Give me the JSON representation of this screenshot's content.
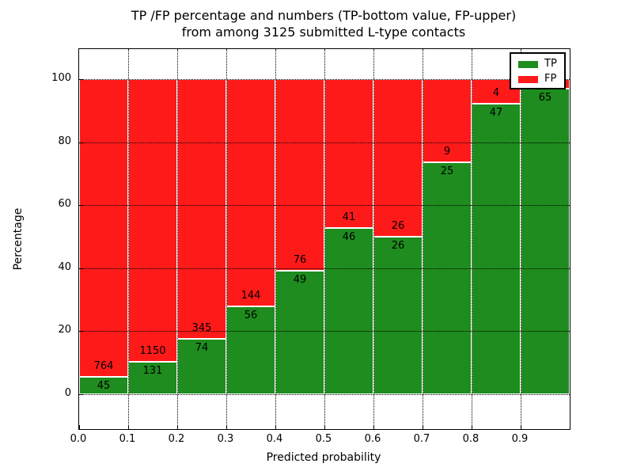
{
  "chart_data": {
    "type": "bar",
    "stacked": true,
    "title_line1": "TP /FP percentage and numbers (TP-bottom value, FP-upper)",
    "title_line2": "from among 3125 submitted L-type contacts",
    "xlabel": "Predicted probability",
    "ylabel": "Percentage",
    "x_tick_labels": [
      "0.0",
      "0.1",
      "0.2",
      "0.3",
      "0.4",
      "0.5",
      "0.6",
      "0.7",
      "0.8",
      "0.9"
    ],
    "y_ticks": [
      0,
      20,
      40,
      60,
      80,
      100
    ],
    "y_tick_labels": [
      "0",
      "20",
      "40",
      "60",
      "80",
      "100"
    ],
    "xlim": [
      0.0,
      1.0
    ],
    "ylim_display": [
      -11,
      110
    ],
    "bin_width": 0.1,
    "grid": "dotted",
    "colors": {
      "tp": "#1E8C1E",
      "fp": "#FF1A1A",
      "bar_edge": "#FFFFFF",
      "grid": "#000000",
      "text": "#000000",
      "background": "#FFFFFF"
    },
    "legend": {
      "position": "upper-right",
      "entries": [
        {
          "label": "TP",
          "color": "#1E8C1E"
        },
        {
          "label": "FP",
          "color": "#FF1A1A"
        }
      ]
    },
    "bins": [
      {
        "range_start": 0.0,
        "tp": 45,
        "fp": 764
      },
      {
        "range_start": 0.1,
        "tp": 131,
        "fp": 1150
      },
      {
        "range_start": 0.2,
        "tp": 74,
        "fp": 345
      },
      {
        "range_start": 0.3,
        "tp": 56,
        "fp": 144
      },
      {
        "range_start": 0.4,
        "tp": 49,
        "fp": 76
      },
      {
        "range_start": 0.5,
        "tp": 46,
        "fp": 41
      },
      {
        "range_start": 0.6,
        "tp": 26,
        "fp": 26
      },
      {
        "range_start": 0.7,
        "tp": 25,
        "fp": 9
      },
      {
        "range_start": 0.8,
        "tp": 47,
        "fp": 4
      },
      {
        "range_start": 0.9,
        "tp": 65,
        "fp": 2,
        "fp_label_hidden": true
      }
    ]
  }
}
